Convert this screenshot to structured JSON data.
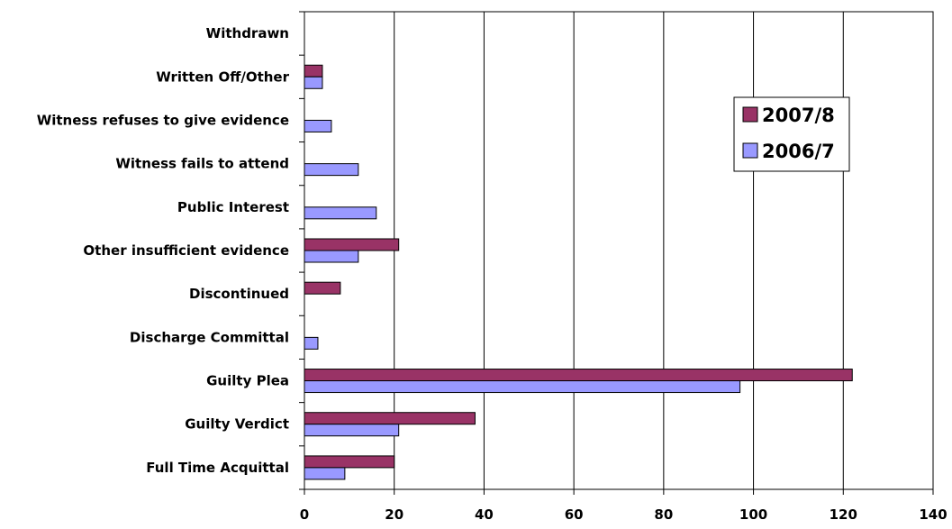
{
  "chart_data": {
    "type": "bar",
    "orientation": "horizontal",
    "categories": [
      "Withdrawn",
      "Written Off/Other",
      "Witness refuses to give evidence",
      "Witness fails to attend",
      "Public Interest",
      "Other insufficient evidence",
      "Discontinued",
      "Discharge Committal",
      "Guilty Plea",
      "Guilty Verdict",
      "Full Time Acquittal"
    ],
    "series": [
      {
        "name": "2007/8",
        "color": "#993366",
        "values": [
          0,
          4,
          0,
          0,
          0,
          21,
          8,
          0,
          122,
          38,
          20
        ]
      },
      {
        "name": "2006/7",
        "color": "#9999FF",
        "values": [
          0,
          4,
          6,
          12,
          16,
          12,
          0,
          3,
          97,
          21,
          9
        ]
      }
    ],
    "x_ticks": [
      "0",
      "20",
      "40",
      "60",
      "80",
      "100",
      "120",
      "140"
    ],
    "xlim": [
      0,
      140
    ],
    "title": "",
    "xlabel": "",
    "ylabel": "",
    "grid": "vertical",
    "legend_position": "right"
  }
}
